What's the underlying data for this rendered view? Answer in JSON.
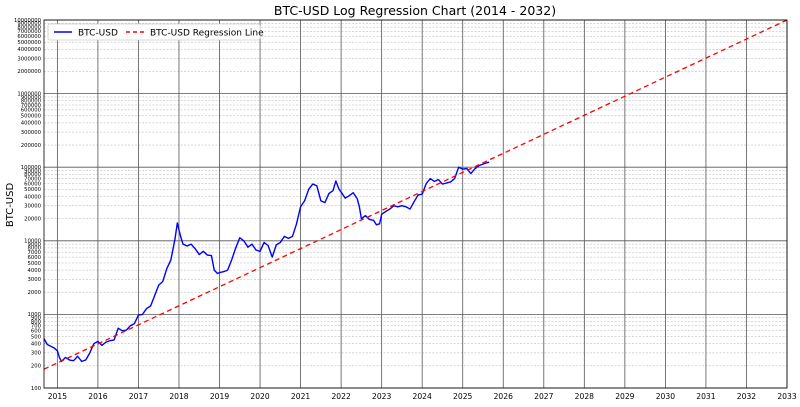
{
  "chart_data": {
    "type": "line",
    "title": "BTC-USD Log Regression Chart (2014 - 2032)",
    "xlabel": "",
    "ylabel": "BTC-USD",
    "y_scale": "log",
    "xlim": [
      2014.67,
      2033.0
    ],
    "ylim": [
      100,
      10000000
    ],
    "grid": true,
    "legend_position": "top-left",
    "x_tick_labels": [
      "2015",
      "2016",
      "2017",
      "2018",
      "2019",
      "2020",
      "2021",
      "2022",
      "2023",
      "2024",
      "2025",
      "2026",
      "2027",
      "2028",
      "2029",
      "2030",
      "2031",
      "2032",
      "2033"
    ],
    "y_tick_labels": [
      "100",
      "200",
      "300",
      "400",
      "500",
      "600",
      "700",
      "800",
      "900",
      "1000",
      "2000",
      "3000",
      "4000",
      "5000",
      "6000",
      "7000",
      "8000",
      "9000",
      "10000",
      "20000",
      "30000",
      "40000",
      "50000",
      "60000",
      "70000",
      "80000",
      "90000",
      "100000",
      "200000",
      "300000",
      "400000",
      "500000",
      "600000",
      "700000",
      "800000",
      "900000",
      "1000000",
      "2000000",
      "3000000",
      "4000000",
      "5000000",
      "6000000",
      "7000000",
      "8000000",
      "9000000",
      "10000000"
    ],
    "colors": {
      "price": "#0000ff",
      "regression": "#ff0000"
    },
    "series": [
      {
        "name": "BTC-USD",
        "style": "solid",
        "x": [
          2014.67,
          2014.75,
          2014.83,
          2014.92,
          2015.0,
          2015.05,
          2015.1,
          2015.2,
          2015.3,
          2015.4,
          2015.5,
          2015.6,
          2015.7,
          2015.8,
          2015.9,
          2016.0,
          2016.1,
          2016.2,
          2016.3,
          2016.4,
          2016.5,
          2016.6,
          2016.7,
          2016.8,
          2016.9,
          2017.0,
          2017.1,
          2017.2,
          2017.3,
          2017.4,
          2017.5,
          2017.6,
          2017.7,
          2017.8,
          2017.9,
          2017.96,
          2018.0,
          2018.05,
          2018.1,
          2018.2,
          2018.3,
          2018.4,
          2018.5,
          2018.6,
          2018.7,
          2018.8,
          2018.87,
          2018.95,
          2019.0,
          2019.1,
          2019.2,
          2019.3,
          2019.4,
          2019.5,
          2019.6,
          2019.7,
          2019.8,
          2019.9,
          2020.0,
          2020.1,
          2020.2,
          2020.3,
          2020.4,
          2020.5,
          2020.6,
          2020.7,
          2020.8,
          2020.9,
          2021.0,
          2021.1,
          2021.2,
          2021.3,
          2021.4,
          2021.5,
          2021.6,
          2021.7,
          2021.8,
          2021.87,
          2021.95,
          2022.0,
          2022.1,
          2022.2,
          2022.3,
          2022.4,
          2022.45,
          2022.5,
          2022.6,
          2022.7,
          2022.8,
          2022.87,
          2022.95,
          2023.0,
          2023.1,
          2023.2,
          2023.3,
          2023.4,
          2023.5,
          2023.6,
          2023.7,
          2023.8,
          2023.9,
          2024.0,
          2024.1,
          2024.2,
          2024.3,
          2024.4,
          2024.5,
          2024.6,
          2024.7,
          2024.8,
          2024.9,
          2025.0,
          2025.1,
          2025.2,
          2025.3,
          2025.4,
          2025.5,
          2025.6,
          2025.65
        ],
        "values": [
          470,
          390,
          370,
          350,
          320,
          260,
          230,
          260,
          240,
          235,
          270,
          230,
          240,
          300,
          400,
          430,
          380,
          420,
          440,
          450,
          650,
          600,
          610,
          700,
          750,
          980,
          1000,
          1200,
          1300,
          1800,
          2500,
          2800,
          4200,
          5500,
          10500,
          17500,
          14000,
          11000,
          9000,
          8500,
          9000,
          7800,
          6500,
          7200,
          6400,
          6300,
          4000,
          3600,
          3700,
          3800,
          4000,
          5500,
          8000,
          11000,
          10000,
          8200,
          9000,
          7500,
          7200,
          9500,
          8600,
          6000,
          8800,
          9500,
          11500,
          10800,
          11500,
          17000,
          29000,
          35000,
          50000,
          59000,
          56000,
          35000,
          33000,
          44000,
          48000,
          65000,
          50000,
          46000,
          38000,
          41000,
          45000,
          37000,
          29000,
          20000,
          22000,
          19500,
          19000,
          16500,
          17000,
          23000,
          25000,
          27000,
          30000,
          29000,
          30000,
          29000,
          27000,
          34000,
          42000,
          43000,
          60000,
          70000,
          64000,
          68000,
          59000,
          61000,
          63000,
          70000,
          100000,
          94000,
          96000,
          82000,
          95000,
          105000,
          110000,
          115000,
          117000
        ]
      },
      {
        "name": "BTC-USD Regression Line",
        "style": "dashed",
        "x": [
          2014.67,
          2033.0
        ],
        "values": [
          180,
          10000000
        ]
      }
    ]
  }
}
